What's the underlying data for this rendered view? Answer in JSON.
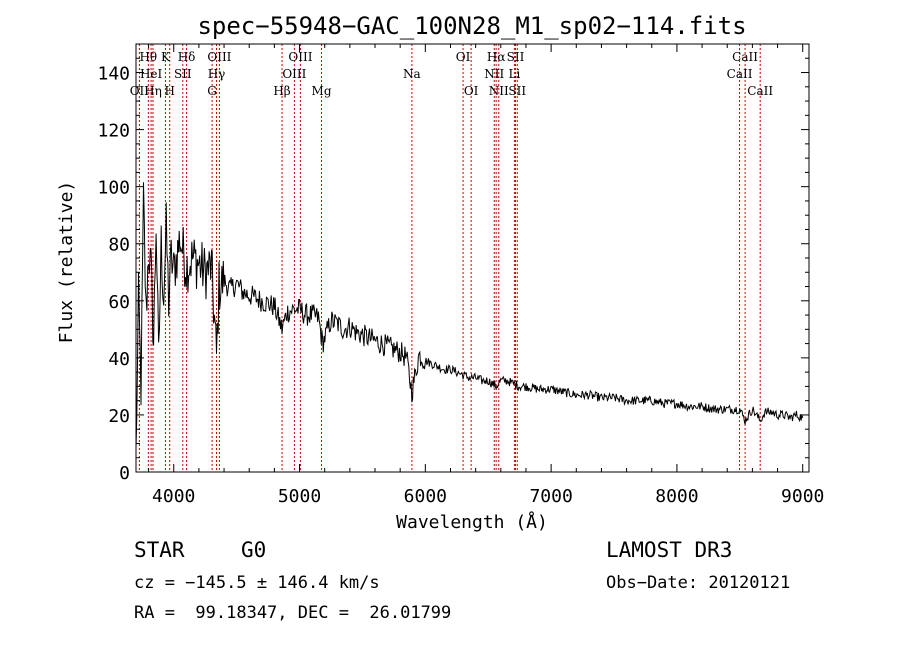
{
  "chart_data": {
    "type": "line",
    "title": "spec−55948−GAC_100N28_M1_sp02−114.fits",
    "xlabel": "Wavelength (Å)",
    "ylabel": "Flux (relative)",
    "xlim": [
      3700,
      9050
    ],
    "ylim": [
      0,
      150
    ],
    "xticks": [
      4000,
      5000,
      6000,
      7000,
      8000,
      9000
    ],
    "yticks": [
      0,
      20,
      40,
      60,
      80,
      100,
      120,
      140
    ],
    "series": [
      {
        "name": "flux",
        "x": [
          3700,
          3720,
          3740,
          3760,
          3780,
          3800,
          3820,
          3840,
          3860,
          3880,
          3900,
          3920,
          3940,
          3960,
          3980,
          4000,
          4050,
          4100,
          4150,
          4200,
          4250,
          4300,
          4340,
          4360,
          4400,
          4450,
          4500,
          4550,
          4600,
          4650,
          4700,
          4750,
          4800,
          4861,
          4900,
          4950,
          5000,
          5050,
          5100,
          5150,
          5183,
          5250,
          5300,
          5350,
          5400,
          5450,
          5500,
          5550,
          5600,
          5650,
          5700,
          5750,
          5800,
          5850,
          5893,
          5950,
          6000,
          6050,
          6100,
          6150,
          6200,
          6250,
          6300,
          6350,
          6400,
          6450,
          6500,
          6563,
          6600,
          6650,
          6700,
          6750,
          6800,
          6900,
          7000,
          7100,
          7200,
          7300,
          7400,
          7500,
          7600,
          7700,
          7800,
          7900,
          8000,
          8100,
          8200,
          8300,
          8400,
          8500,
          8542,
          8600,
          8662,
          8700,
          8750,
          8800,
          8850,
          8900,
          8950,
          9000
        ],
        "values": [
          5,
          60,
          30,
          95,
          55,
          78,
          70,
          45,
          88,
          38,
          80,
          62,
          85,
          60,
          75,
          70,
          82,
          72,
          75,
          73,
          70,
          72,
          40,
          65,
          67,
          64,
          66,
          63,
          62,
          61,
          60,
          59,
          58,
          50,
          56,
          57,
          57,
          55,
          55,
          54,
          45,
          53,
          52,
          50,
          51,
          49,
          48,
          47,
          46,
          45,
          44,
          43,
          42,
          40,
          28,
          41,
          39,
          38,
          37,
          36,
          36,
          35,
          34,
          33,
          33,
          32,
          32,
          30,
          32,
          32,
          31,
          30,
          30,
          29,
          29,
          28,
          27,
          27,
          26,
          26,
          25,
          25,
          25,
          24,
          24,
          23,
          23,
          22,
          22,
          22,
          18,
          22,
          18,
          21,
          21,
          20,
          20,
          19,
          20,
          19
        ]
      }
    ],
    "lines": [
      {
        "label": "Hθ",
        "wave": 3798,
        "row": 1
      },
      {
        "label": "OII",
        "wave": 3727,
        "row": 3
      },
      {
        "label": "HeI",
        "wave": 3820,
        "row": 2
      },
      {
        "label": "Hη",
        "wave": 3835,
        "row": 3
      },
      {
        "label": "K",
        "wave": 3934,
        "row": 1
      },
      {
        "label": "SII",
        "wave": 4072,
        "row": 2
      },
      {
        "label": "H",
        "wave": 3968,
        "row": 3
      },
      {
        "label": "Hδ",
        "wave": 4102,
        "row": 1
      },
      {
        "label": "OIII",
        "wave": 4363,
        "row": 1
      },
      {
        "label": "Hγ",
        "wave": 4340,
        "row": 2
      },
      {
        "label": "G",
        "wave": 4305,
        "row": 3
      },
      {
        "label": "OIII",
        "wave": 5007,
        "row": 1
      },
      {
        "label": "OIII",
        "wave": 4959,
        "row": 2
      },
      {
        "label": "Hβ",
        "wave": 4861,
        "row": 3
      },
      {
        "label": "Mg",
        "wave": 5175,
        "row": 3
      },
      {
        "label": "Na",
        "wave": 5893,
        "row": 2
      },
      {
        "label": "OI",
        "wave": 6300,
        "row": 1
      },
      {
        "label": "OI",
        "wave": 6364,
        "row": 3
      },
      {
        "label": "Hα",
        "wave": 6563,
        "row": 1
      },
      {
        "label": "NII",
        "wave": 6548,
        "row": 2
      },
      {
        "label": "NII",
        "wave": 6584,
        "row": 3
      },
      {
        "label": "SII",
        "wave": 6717,
        "row": 1
      },
      {
        "label": "Li",
        "wave": 6708,
        "row": 2
      },
      {
        "label": "SII",
        "wave": 6731,
        "row": 3
      },
      {
        "label": "CaII",
        "wave": 8542,
        "row": 1
      },
      {
        "label": "CaII",
        "wave": 8498,
        "row": 2
      },
      {
        "label": "CaII",
        "wave": 8662,
        "row": 3
      }
    ]
  },
  "info": {
    "object_class": "STAR",
    "subclass": "G0",
    "survey": "LAMOST DR3",
    "cz": "cz = −145.5 ± 146.4 km/s",
    "obs_date": "Obs−Date: 20120121",
    "coords": "RA =  99.18347, DEC =  26.01799"
  },
  "colors": {
    "line_marker": "#cc0000",
    "spectrum": "#000000"
  }
}
